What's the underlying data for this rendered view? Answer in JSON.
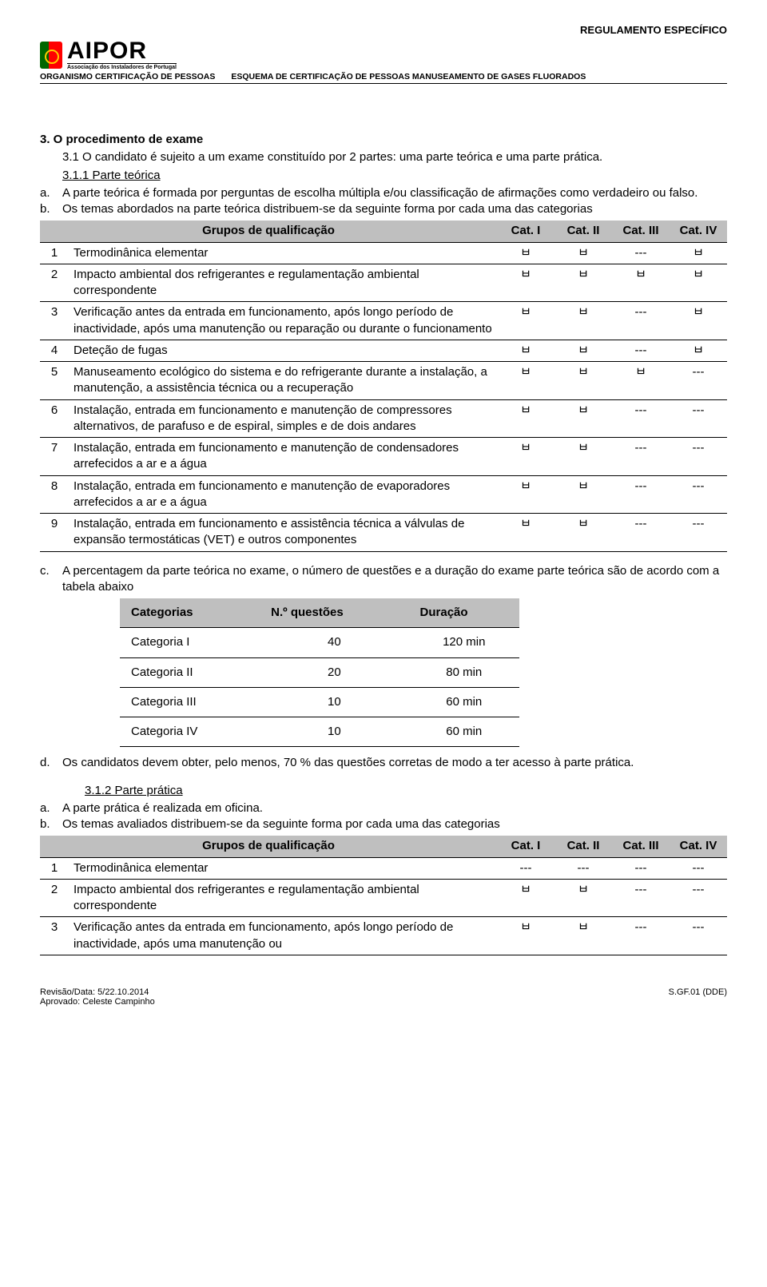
{
  "header": {
    "top_right": "REGULAMENTO ESPECÍFICO",
    "logo_name": "AIPOR",
    "logo_sub": "Associação dos Instaladores de Portugal",
    "sub_left": "ORGANISMO CERTIFICAÇÃO DE PESSOAS",
    "sub_right": "ESQUEMA DE CERTIFICAÇÃO DE PESSOAS MANUSEAMENTO DE GASES FLUORADOS"
  },
  "section3": {
    "title": "3.  O procedimento de exame",
    "p31": "3.1 O candidato é sujeito a um exame constituído por 2 partes: uma parte teórica e uma parte prática.",
    "p311_label": "3.1.1 Parte teórica",
    "a_marker": "a.",
    "a_text": "A parte teórica é formada por perguntas de escolha múltipla e/ou classificação de afirmações como verdadeiro ou falso.",
    "b_marker": "b.",
    "b_text": "Os temas abordados na parte teórica distribuem-se da seguinte forma por cada uma das categorias"
  },
  "table1": {
    "head_group": "Grupos de qualificação",
    "head_cats": [
      "Cat. I",
      "Cat. II",
      "Cat. III",
      "Cat. IV"
    ],
    "rows": [
      {
        "n": "1",
        "desc": "Termodinânica elementar",
        "marks": [
          "ㅂ",
          "ㅂ",
          "---",
          "ㅂ"
        ]
      },
      {
        "n": "2",
        "desc": "Impacto ambiental dos refrigerantes e regulamentação ambiental correspondente",
        "marks": [
          "ㅂ",
          "ㅂ",
          "ㅂ",
          "ㅂ"
        ]
      },
      {
        "n": "3",
        "desc": "Verificação antes da entrada em funcionamento, após longo período de inactividade, após uma manutenção ou reparação ou durante o funcionamento",
        "marks": [
          "ㅂ",
          "ㅂ",
          "---",
          "ㅂ"
        ]
      },
      {
        "n": "4",
        "desc": "Deteção de fugas",
        "marks": [
          "ㅂ",
          "ㅂ",
          "---",
          "ㅂ"
        ]
      },
      {
        "n": "5",
        "desc": "Manuseamento ecológico do sistema e do refrigerante durante a instalação, a manutenção, a assistência técnica ou a recuperação",
        "marks": [
          "ㅂ",
          "ㅂ",
          "ㅂ",
          "---"
        ]
      },
      {
        "n": "6",
        "desc": "Instalação, entrada em funcionamento e manutenção de compressores alternativos, de parafuso e de espiral, simples e de dois andares",
        "marks": [
          "ㅂ",
          "ㅂ",
          "---",
          "---"
        ]
      },
      {
        "n": "7",
        "desc": "Instalação, entrada em funcionamento e manutenção de condensadores arrefecidos a ar e a água",
        "marks": [
          "ㅂ",
          "ㅂ",
          "---",
          "---"
        ]
      },
      {
        "n": "8",
        "desc": "Instalação, entrada em funcionamento e manutenção de evaporadores arrefecidos a ar e a água",
        "marks": [
          "ㅂ",
          "ㅂ",
          "---",
          "---"
        ]
      },
      {
        "n": "9",
        "desc": "Instalação, entrada em funcionamento e assistência técnica a válvulas de expansão termostáticas (VET) e outros componentes",
        "marks": [
          "ㅂ",
          "ㅂ",
          "---",
          "---"
        ]
      }
    ]
  },
  "section_c": {
    "marker": "c.",
    "text": "A percentagem da parte teórica no exame, o número de questões e a duração do exame parte teórica são de acordo com a tabela abaixo"
  },
  "table2": {
    "head": [
      "Categorias",
      "N.º questões",
      "Duração"
    ],
    "rows": [
      [
        "Categoria I",
        "40",
        "120 min"
      ],
      [
        "Categoria II",
        "20",
        "80 min"
      ],
      [
        "Categoria III",
        "10",
        "60 min"
      ],
      [
        "Categoria IV",
        "10",
        "60 min"
      ]
    ]
  },
  "section_d": {
    "marker": "d.",
    "text": "Os candidatos devem obter, pelo menos, 70 % das questões corretas de modo a ter acesso à parte prática."
  },
  "p312_label": "3.1.2   Parte prática",
  "section_a2": {
    "marker": "a.",
    "text": "A parte prática é realizada em oficina."
  },
  "section_b2": {
    "marker": "b.",
    "text": "Os temas avaliados distribuem-se da seguinte forma por cada uma das categorias"
  },
  "table3": {
    "head_group": "Grupos de qualificação",
    "head_cats": [
      "Cat. I",
      "Cat. II",
      "Cat. III",
      "Cat. IV"
    ],
    "rows": [
      {
        "n": "1",
        "desc": "Termodinânica elementar",
        "marks": [
          "---",
          "---",
          "---",
          "---"
        ]
      },
      {
        "n": "2",
        "desc": "Impacto ambiental dos refrigerantes e regulamentação ambiental correspondente",
        "marks": [
          "ㅂ",
          "ㅂ",
          "---",
          "---"
        ]
      },
      {
        "n": "3",
        "desc": "Verificação antes da entrada em funcionamento, após longo período de inactividade, após uma manutenção ou",
        "marks": [
          "ㅂ",
          "ㅂ",
          "---",
          "---"
        ]
      }
    ]
  },
  "footer": {
    "left1": "Revisão/Data: 5/22.10.2014",
    "left2": "Aprovado: Celeste Campinho",
    "right": "S.GF.01 (DDE)"
  },
  "colors": {
    "header_bg": "#bfbfbf",
    "text": "#000000",
    "page_bg": "#ffffff"
  }
}
